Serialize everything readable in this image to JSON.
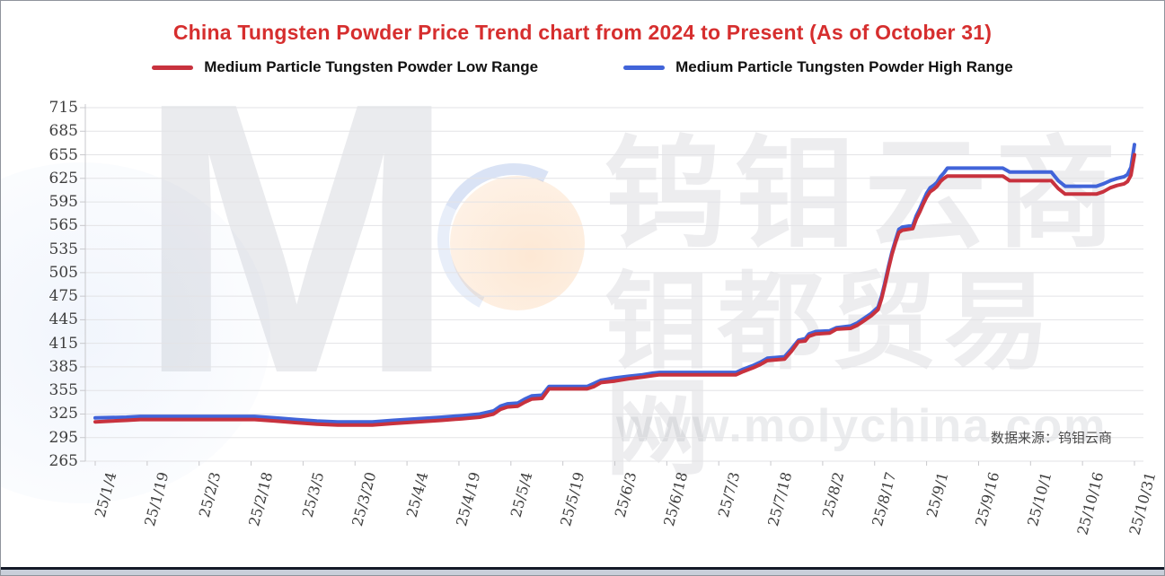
{
  "page": {
    "source_note": "数据来源：钨钼云商"
  },
  "legend": {
    "items": [
      {
        "label": "Medium Particle Tungsten Powder Low Range",
        "color": "#c8323e"
      },
      {
        "label": "Medium Particle Tungsten Powder High Range",
        "color": "#4164d9"
      }
    ]
  },
  "watermark": {
    "logo_letter": "M",
    "line1": "钨钼云商",
    "line2": "钼都贸易网",
    "line3": "www.molychina.com"
  },
  "chart_data": {
    "type": "line",
    "title": "China Tungsten Powder Price Trend chart from 2024 to Present (As of October 31)",
    "title_color": "#d62e2e",
    "xlabel": "",
    "ylabel": "",
    "grid": "horizontal",
    "legend_position": "top",
    "ylim": [
      265,
      715
    ],
    "y_ticks": [
      265,
      295,
      325,
      355,
      385,
      415,
      445,
      475,
      505,
      535,
      565,
      595,
      625,
      655,
      685,
      715
    ],
    "x_tick_labels": [
      "25/1/4",
      "25/1/19",
      "25/2/3",
      "25/2/18",
      "25/3/5",
      "25/3/20",
      "25/4/4",
      "25/4/19",
      "25/5/4",
      "25/5/19",
      "25/6/3",
      "25/6/18",
      "25/7/3",
      "25/7/18",
      "25/8/2",
      "25/8/17",
      "25/9/1",
      "25/9/16",
      "25/10/1",
      "25/10/16",
      "25/10/31"
    ],
    "x_tick_interval_days": 15,
    "x_day_range": [
      0,
      300
    ],
    "series": [
      {
        "name": "Medium Particle Tungsten Powder Low Range",
        "color": "#c8323e",
        "points": [
          [
            0,
            315
          ],
          [
            9,
            317
          ],
          [
            13,
            318
          ],
          [
            46,
            318
          ],
          [
            52,
            316
          ],
          [
            58,
            314
          ],
          [
            64,
            312
          ],
          [
            70,
            311
          ],
          [
            80,
            311
          ],
          [
            86,
            313
          ],
          [
            93,
            315
          ],
          [
            100,
            317
          ],
          [
            106,
            319
          ],
          [
            111,
            321
          ],
          [
            115,
            325
          ],
          [
            117,
            331
          ],
          [
            119,
            334
          ],
          [
            122,
            335
          ],
          [
            124,
            340
          ],
          [
            126,
            344
          ],
          [
            129,
            345
          ],
          [
            131,
            357
          ],
          [
            142,
            357
          ],
          [
            144,
            360
          ],
          [
            146,
            365
          ],
          [
            150,
            367
          ],
          [
            154,
            370
          ],
          [
            158,
            372
          ],
          [
            161,
            374
          ],
          [
            163,
            375
          ],
          [
            185,
            375
          ],
          [
            187,
            379
          ],
          [
            190,
            384
          ],
          [
            192,
            388
          ],
          [
            194,
            393
          ],
          [
            199,
            395
          ],
          [
            201,
            405
          ],
          [
            203,
            417
          ],
          [
            205,
            418
          ],
          [
            206,
            424
          ],
          [
            208,
            427
          ],
          [
            212,
            428
          ],
          [
            214,
            433
          ],
          [
            218,
            434
          ],
          [
            220,
            438
          ],
          [
            222,
            444
          ],
          [
            224,
            450
          ],
          [
            226,
            458
          ],
          [
            227,
            472
          ],
          [
            228,
            490
          ],
          [
            229,
            510
          ],
          [
            230,
            528
          ],
          [
            231,
            543
          ],
          [
            232,
            556
          ],
          [
            233,
            559
          ],
          [
            236,
            561
          ],
          [
            237,
            573
          ],
          [
            238,
            582
          ],
          [
            239,
            592
          ],
          [
            240,
            601
          ],
          [
            241,
            608
          ],
          [
            242,
            611
          ],
          [
            243,
            615
          ],
          [
            244,
            621
          ],
          [
            245,
            625
          ],
          [
            246,
            628
          ],
          [
            262,
            628
          ],
          [
            264,
            622
          ],
          [
            276,
            622
          ],
          [
            278,
            612
          ],
          [
            280,
            605
          ],
          [
            289,
            605
          ],
          [
            291,
            608
          ],
          [
            293,
            613
          ],
          [
            295,
            616
          ],
          [
            297,
            618
          ],
          [
            298,
            621
          ],
          [
            299,
            629
          ],
          [
            300,
            655
          ]
        ]
      },
      {
        "name": "Medium Particle Tungsten Powder High Range",
        "color": "#4164d9",
        "points": [
          [
            0,
            320
          ],
          [
            9,
            321
          ],
          [
            13,
            322
          ],
          [
            46,
            322
          ],
          [
            52,
            320
          ],
          [
            58,
            318
          ],
          [
            64,
            316
          ],
          [
            70,
            315
          ],
          [
            80,
            315
          ],
          [
            86,
            317
          ],
          [
            93,
            319
          ],
          [
            100,
            321
          ],
          [
            106,
            323
          ],
          [
            111,
            325
          ],
          [
            115,
            329
          ],
          [
            117,
            335
          ],
          [
            119,
            338
          ],
          [
            122,
            339
          ],
          [
            124,
            344
          ],
          [
            126,
            348
          ],
          [
            129,
            349
          ],
          [
            131,
            360
          ],
          [
            142,
            360
          ],
          [
            144,
            364
          ],
          [
            146,
            368
          ],
          [
            150,
            371
          ],
          [
            154,
            373
          ],
          [
            158,
            375
          ],
          [
            161,
            377
          ],
          [
            163,
            378
          ],
          [
            185,
            378
          ],
          [
            187,
            382
          ],
          [
            190,
            387
          ],
          [
            192,
            391
          ],
          [
            194,
            396
          ],
          [
            199,
            398
          ],
          [
            201,
            408
          ],
          [
            203,
            419
          ],
          [
            205,
            421
          ],
          [
            206,
            427
          ],
          [
            208,
            430
          ],
          [
            212,
            431
          ],
          [
            214,
            435
          ],
          [
            218,
            437
          ],
          [
            220,
            441
          ],
          [
            222,
            447
          ],
          [
            224,
            453
          ],
          [
            226,
            461
          ],
          [
            227,
            475
          ],
          [
            228,
            493
          ],
          [
            229,
            513
          ],
          [
            230,
            531
          ],
          [
            231,
            546
          ],
          [
            232,
            560
          ],
          [
            233,
            563
          ],
          [
            236,
            565
          ],
          [
            237,
            577
          ],
          [
            238,
            586
          ],
          [
            239,
            596
          ],
          [
            240,
            606
          ],
          [
            241,
            613
          ],
          [
            242,
            616
          ],
          [
            243,
            620
          ],
          [
            244,
            627
          ],
          [
            245,
            632
          ],
          [
            246,
            638
          ],
          [
            262,
            638
          ],
          [
            264,
            633
          ],
          [
            276,
            633
          ],
          [
            278,
            622
          ],
          [
            280,
            615
          ],
          [
            289,
            615
          ],
          [
            291,
            618
          ],
          [
            293,
            622
          ],
          [
            295,
            625
          ],
          [
            297,
            627
          ],
          [
            298,
            630
          ],
          [
            299,
            639
          ],
          [
            300,
            668
          ]
        ]
      }
    ]
  }
}
